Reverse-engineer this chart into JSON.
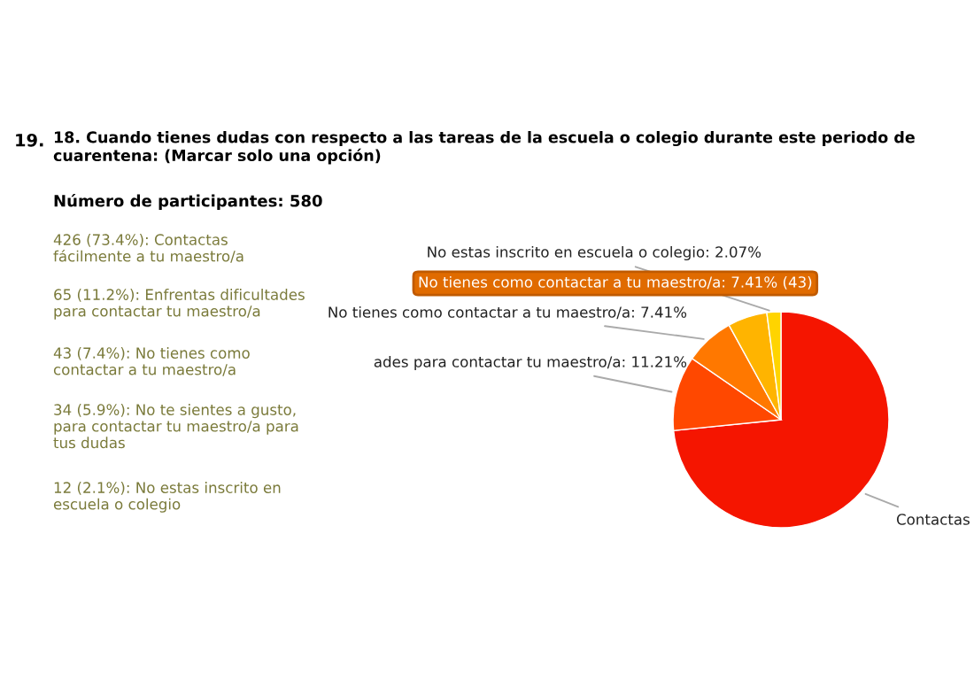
{
  "chart_data": {
    "type": "pie",
    "title": "18. Cuando tienes dudas con respecto a las tareas de la escuela o colegio durante este periodo de cuarentena: (Marcar solo una opción)",
    "subtitle": "Número de participantes: 580",
    "categories": [
      null,
      null,
      null,
      null,
      null
    ],
    "values": [
      73.4,
      11.2,
      7.4,
      5.9,
      2.1
    ],
    "colors": [
      "#f51500",
      "#ff4800",
      "#ff7800",
      "#ffb400",
      "#ffd400"
    ],
    "annotations": [
      "19.",
      "Contactas",
      "ades para contactar tu maestro/a: 11.21%",
      "No tienes como contactar a tu maestro/a: 7.41%",
      "No estas inscrito en escuela o colegio: 2.07%",
      "No tienes como contactar a tu maestro/a: 7.41% (43)",
      "426 (73.4%): Contactas fácilmente a tu maestro/a",
      "65 (11.2%): Enfrentas dificultades para contactar tu maestro/a",
      "43 (7.4%): No tienes como contactar a tu maestro/a",
      "34 (5.9%): No te sientes a gusto, para contactar tu maestro/a para tus dudas",
      "12 (2.1%): No estas inscrito en escuela o colegio"
    ]
  }
}
